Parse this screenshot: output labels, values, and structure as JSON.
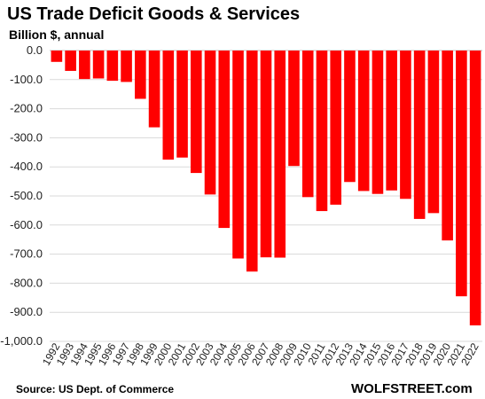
{
  "chart_data": {
    "type": "bar",
    "title": "US Trade Deficit Goods  & Services",
    "subtitle": "Billion $, annual",
    "xlabel": "",
    "ylabel": "",
    "ylim": [
      -1000,
      0
    ],
    "yticks": [
      0,
      -100,
      -200,
      -300,
      -400,
      -500,
      -600,
      -700,
      -800,
      -900,
      -1000
    ],
    "ytick_labels": [
      "0.0",
      "-100.0",
      "-200.0",
      "-300.0",
      "-400.0",
      "-500.0",
      "-600.0",
      "-700.0",
      "-800.0",
      "-900.0",
      "-1,000.0"
    ],
    "grid": true,
    "legend": "none",
    "bar_color": "#ff0000",
    "categories": [
      "1992",
      "1993",
      "1994",
      "1995",
      "1996",
      "1997",
      "1998",
      "1999",
      "2000",
      "2001",
      "2002",
      "2003",
      "2004",
      "2005",
      "2006",
      "2007",
      "2008",
      "2009",
      "2010",
      "2011",
      "2012",
      "2013",
      "2014",
      "2015",
      "2016",
      "2017",
      "2018",
      "2019",
      "2020",
      "2021",
      "2022"
    ],
    "values": [
      -39,
      -70,
      -98,
      -96,
      -104,
      -108,
      -166,
      -264,
      -375,
      -368,
      -421,
      -495,
      -610,
      -715,
      -760,
      -711,
      -712,
      -397,
      -504,
      -552,
      -530,
      -452,
      -483,
      -493,
      -481,
      -510,
      -579,
      -559,
      -653,
      -845,
      -945
    ]
  },
  "footer": {
    "source": "Source: US Dept. of Commerce",
    "brand": "WOLFSTREET.com"
  }
}
